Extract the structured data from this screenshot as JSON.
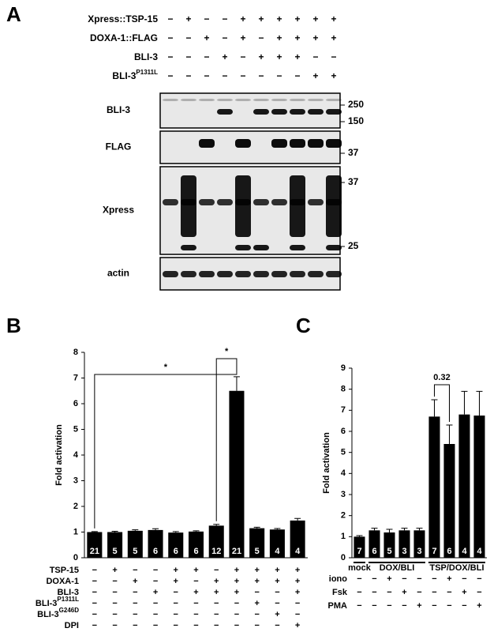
{
  "panel_a": {
    "letter": "A",
    "conditions": [
      {
        "name": "Xpress::TSP-15",
        "marks": [
          "−",
          "+",
          "−",
          "−",
          "+",
          "+",
          "+",
          "+",
          "+",
          "+"
        ]
      },
      {
        "name": "DOXA-1::FLAG",
        "marks": [
          "−",
          "−",
          "+",
          "−",
          "+",
          "−",
          "+",
          "+",
          "+",
          "+"
        ]
      },
      {
        "name": "BLI-3",
        "marks": [
          "−",
          "−",
          "−",
          "+",
          "−",
          "+",
          "+",
          "+",
          "−",
          "−"
        ]
      },
      {
        "name": "BLI-3",
        "sup": "P1311L",
        "marks": [
          "−",
          "−",
          "−",
          "−",
          "−",
          "−",
          "−",
          "−",
          "+",
          "+"
        ]
      }
    ],
    "blots": [
      "BLI-3",
      "FLAG",
      "Xpress",
      "actin"
    ],
    "markers": [
      250,
      150,
      37,
      37,
      25
    ]
  },
  "chart_data": [
    {
      "type": "bar",
      "letter": "B",
      "ylabel": "Fold activation",
      "ylim": [
        0,
        8
      ],
      "yticks": [
        0,
        1,
        2,
        3,
        4,
        5,
        6,
        7,
        8
      ],
      "color": "#000000",
      "values": [
        1.0,
        1.0,
        1.05,
        1.08,
        0.98,
        1.02,
        1.25,
        6.5,
        1.15,
        1.1,
        1.45
      ],
      "errors": [
        0.02,
        0.03,
        0.04,
        0.05,
        0.04,
        0.03,
        0.05,
        0.55,
        0.04,
        0.04,
        0.08
      ],
      "n": [
        21,
        5,
        5,
        6,
        6,
        6,
        12,
        21,
        5,
        4,
        4
      ],
      "annotations": [
        "*",
        "*"
      ],
      "conditions": [
        {
          "name": "TSP-15",
          "marks": [
            "−",
            "+",
            "−",
            "−",
            "+",
            "+",
            "−",
            "+",
            "+",
            "+",
            "+"
          ]
        },
        {
          "name": "DOXA-1",
          "marks": [
            "−",
            "−",
            "+",
            "−",
            "+",
            "−",
            "+",
            "+",
            "+",
            "+",
            "+"
          ]
        },
        {
          "name": "BLI-3",
          "marks": [
            "−",
            "−",
            "−",
            "+",
            "−",
            "+",
            "+",
            "+",
            "−",
            "−",
            "+"
          ]
        },
        {
          "name": "BLI-3",
          "sup": "P1311L",
          "marks": [
            "−",
            "−",
            "−",
            "−",
            "−",
            "−",
            "−",
            "−",
            "+",
            "−",
            "−"
          ]
        },
        {
          "name": "BLI-3",
          "sup": "G246D",
          "marks": [
            "−",
            "−",
            "−",
            "−",
            "−",
            "−",
            "−",
            "−",
            "−",
            "+",
            "−"
          ]
        },
        {
          "name": "DPI",
          "marks": [
            "−",
            "−",
            "−",
            "−",
            "−",
            "−",
            "−",
            "−",
            "−",
            "−",
            "+"
          ]
        }
      ]
    },
    {
      "type": "bar",
      "letter": "C",
      "ylabel": "Fold activation",
      "ylim": [
        0,
        9
      ],
      "yticks": [
        0,
        1,
        2,
        3,
        4,
        5,
        6,
        7,
        8,
        9
      ],
      "color": "#000000",
      "values": [
        1.0,
        1.3,
        1.2,
        1.3,
        1.3,
        6.7,
        5.4,
        6.8,
        6.75
      ],
      "errors": [
        0.05,
        0.1,
        0.15,
        0.1,
        0.1,
        0.8,
        0.9,
        1.1,
        1.15
      ],
      "n": [
        7,
        6,
        5,
        3,
        3,
        7,
        6,
        4,
        4
      ],
      "annotations": [
        "0.32"
      ],
      "groups": [
        "mock",
        "DOX/BLI",
        "TSP/DOX/BLI"
      ],
      "conditions": [
        {
          "name": "iono",
          "marks": [
            "−",
            "−",
            "+",
            "−",
            "−",
            "−",
            "+",
            "−",
            "−"
          ]
        },
        {
          "name": "Fsk",
          "marks": [
            "−",
            "−",
            "−",
            "+",
            "−",
            "−",
            "−",
            "+",
            "−"
          ]
        },
        {
          "name": "PMA",
          "marks": [
            "−",
            "−",
            "−",
            "−",
            "+",
            "−",
            "−",
            "−",
            "+"
          ]
        }
      ]
    }
  ]
}
